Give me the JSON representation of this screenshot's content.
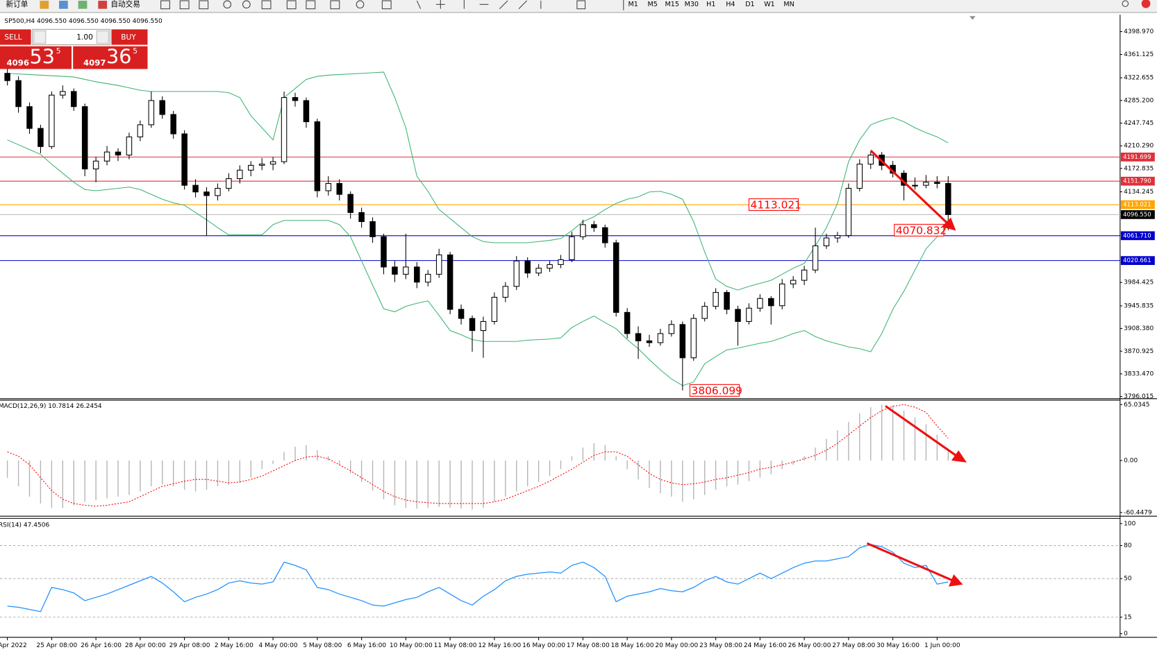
{
  "toolbar": {
    "new_order": "新订单",
    "auto_trading": "自动交易",
    "timeframes": [
      "M1",
      "M5",
      "M15",
      "M30",
      "H1",
      "H4",
      "D1",
      "W1",
      "MN"
    ]
  },
  "trade_panel": {
    "sell": "SELL",
    "lots": "1.00",
    "buy": "BUY",
    "bid": {
      "big": "4096",
      "main": "53",
      "small": "5"
    },
    "ask": {
      "big": "4097",
      "main": "36",
      "small": "5"
    }
  },
  "chart_data": [
    {
      "type": "candlestick",
      "title": "SP500,H4  4096.550 4096.550 4096.550 4096.550",
      "categories": [
        "Apr 2022",
        null,
        null,
        null,
        "25 Apr 08:00",
        null,
        null,
        null,
        "26 Apr 16:00",
        null,
        null,
        null,
        "28 Apr 00:00",
        null,
        null,
        null,
        "29 Apr 08:00",
        null,
        null,
        null,
        "2 May 16:00",
        null,
        null,
        null,
        "4 May 00:00",
        null,
        null,
        null,
        "5 May 08:00",
        null,
        null,
        null,
        "6 May 16:00",
        null,
        null,
        null,
        "10 May 00:00",
        null,
        null,
        null,
        "11 May 08:00",
        null,
        null,
        null,
        "12 May 16:00",
        null,
        null,
        null,
        "16 May 00:00",
        null,
        null,
        null,
        "17 May 08:00",
        null,
        null,
        null,
        "18 May 16:00",
        null,
        null,
        null,
        "20 May 00:00",
        null,
        null,
        null,
        "23 May 08:00",
        null,
        null,
        null,
        "24 May 16:00",
        null,
        null,
        null,
        "26 May 00:00",
        null,
        null,
        null,
        "27 May 08:00",
        null,
        null,
        null,
        "30 May 16:00",
        null,
        null,
        null,
        "1 Jun 00:00",
        null
      ],
      "open": [
        4330,
        4318,
        4275,
        4239,
        4209,
        4294,
        4300,
        4275,
        4172,
        4185,
        4200,
        4195,
        4225,
        4245,
        4285,
        4262,
        4230,
        4145,
        4134,
        4128,
        4140,
        4156,
        4170,
        4178,
        4180,
        4184,
        4290,
        4285,
        4250,
        4136,
        4148,
        4130,
        4100,
        4085,
        4060,
        4010,
        3998,
        4010,
        3985,
        3998,
        4030,
        3940,
        3925,
        3905,
        3920,
        3960,
        3978,
        4020,
        4000,
        4008,
        4014,
        4022,
        4060,
        4080,
        4075,
        4050,
        3935,
        3900,
        3888,
        3885,
        3900,
        3915,
        3860,
        3925,
        3945,
        3968,
        3940,
        3920,
        3942,
        3958,
        3946,
        3982,
        3988,
        4005,
        4045,
        4058,
        4062,
        4140,
        4180,
        4195,
        4178,
        4165,
        4145,
        4145,
        4150,
        4148
      ],
      "high": [
        4340,
        4325,
        4282,
        4245,
        4300,
        4310,
        4305,
        4280,
        4192,
        4210,
        4206,
        4232,
        4252,
        4300,
        4292,
        4268,
        4236,
        4155,
        4142,
        4148,
        4165,
        4178,
        4185,
        4190,
        4192,
        4300,
        4298,
        4290,
        4255,
        4160,
        4155,
        4135,
        4108,
        4092,
        4065,
        4020,
        4065,
        4018,
        4005,
        4040,
        4035,
        3948,
        3930,
        3928,
        3968,
        3985,
        4028,
        4026,
        4015,
        4020,
        4030,
        4068,
        4088,
        4086,
        4080,
        4055,
        3942,
        3912,
        3898,
        3908,
        3922,
        3920,
        3932,
        3952,
        3975,
        3972,
        3946,
        3950,
        3965,
        3962,
        3990,
        3995,
        4012,
        4075,
        4065,
        4068,
        4148,
        4188,
        4202,
        4200,
        4185,
        4170,
        4158,
        4162,
        4160,
        4160
      ],
      "low": [
        4310,
        4265,
        4230,
        4198,
        4205,
        4288,
        4268,
        4160,
        4150,
        4178,
        4185,
        4188,
        4218,
        4240,
        4255,
        4222,
        4138,
        4125,
        4062,
        4120,
        4135,
        4148,
        4160,
        4170,
        4170,
        4180,
        4275,
        4240,
        4125,
        4128,
        4120,
        4090,
        4075,
        4050,
        3998,
        3985,
        3990,
        3975,
        3978,
        3992,
        3932,
        3915,
        3870,
        3860,
        3915,
        3952,
        3972,
        3992,
        3995,
        4002,
        4008,
        4018,
        4055,
        4068,
        4042,
        3928,
        3892,
        3858,
        3878,
        3880,
        3895,
        3806.099,
        3855,
        3920,
        3940,
        3932,
        3880,
        3915,
        3936,
        3915,
        3940,
        3975,
        3980,
        4000,
        4040,
        4050,
        4058,
        4135,
        4172,
        4170,
        4158,
        4120,
        4138,
        4140,
        4140,
        4070.832
      ],
      "close": [
        4318,
        4275,
        4239,
        4209,
        4294,
        4300,
        4275,
        4172,
        4185,
        4200,
        4195,
        4225,
        4245,
        4285,
        4262,
        4230,
        4145,
        4134,
        4128,
        4140,
        4156,
        4170,
        4178,
        4180,
        4184,
        4290,
        4285,
        4250,
        4136,
        4148,
        4130,
        4100,
        4085,
        4060,
        4010,
        3998,
        4010,
        3985,
        3998,
        4030,
        3940,
        3925,
        3905,
        3920,
        3960,
        3978,
        4020,
        4000,
        4008,
        4014,
        4022,
        4060,
        4080,
        4075,
        4050,
        3935,
        3900,
        3888,
        3885,
        3900,
        3915,
        3860,
        3925,
        3945,
        3968,
        3940,
        3920,
        3942,
        3958,
        3946,
        3982,
        3988,
        4005,
        4045,
        4058,
        4062,
        4140,
        4180,
        4195,
        4178,
        4165,
        4145,
        4145,
        4150,
        4148,
        4096.55
      ],
      "up_color": "#ffffff",
      "down_color": "#000000",
      "bands": [
        {
          "color": "#3cb371",
          "values": [
            4330,
            4329,
            4328,
            4327,
            4326,
            4325,
            4324,
            4320,
            4316,
            4313,
            4310,
            4306,
            4302,
            4300,
            4300,
            4300,
            4300,
            4300,
            4300,
            4300,
            4298,
            4290,
            4260,
            4240,
            4220,
            4290,
            4305,
            4320,
            4325,
            4327,
            4328,
            4329,
            4330,
            4331,
            4332,
            4290,
            4240,
            4160,
            4135,
            4105,
            4090,
            4075,
            4060,
            4052,
            4050,
            4050,
            4050,
            4050,
            4052,
            4054,
            4057,
            4070,
            4085,
            4093,
            4105,
            4115,
            4122,
            4126,
            4134,
            4135,
            4130,
            4122,
            4085,
            4035,
            3990,
            3978,
            3972,
            3978,
            3983,
            3988,
            3998,
            4008,
            4016,
            4045,
            4075,
            4115,
            4184,
            4220,
            4245,
            4252,
            4257,
            4250,
            4240,
            4232,
            4225,
            4215
          ]
        },
        {
          "color": "#3cb371",
          "values": [
            4220,
            4212,
            4204,
            4196,
            4180,
            4165,
            4150,
            4138,
            4136,
            4138,
            4140,
            4142,
            4138,
            4130,
            4122,
            4116,
            4112,
            4100,
            4088,
            4075,
            4063,
            4063,
            4063,
            4063,
            4080,
            4087,
            4087,
            4087,
            4087,
            4087,
            4080,
            4060,
            4020,
            3980,
            3941,
            3936,
            3945,
            3950,
            3954,
            3930,
            3905,
            3898,
            3890,
            3887,
            3887,
            3887,
            3887,
            3889,
            3890,
            3891,
            3893,
            3910,
            3920,
            3929,
            3918,
            3908,
            3890,
            3875,
            3857,
            3840,
            3825,
            3814,
            3820,
            3850,
            3862,
            3873,
            3876,
            3880,
            3884,
            3887,
            3893,
            3900,
            3905,
            3895,
            3888,
            3883,
            3878,
            3875,
            3870,
            3900,
            3940,
            3970,
            4005,
            4040,
            4060,
            4080
          ]
        }
      ],
      "price_lines": [
        {
          "value": 4191.699,
          "label": "4191.699",
          "color": "#e0303a",
          "box": "#e0303a"
        },
        {
          "value": 4151.79,
          "label": "4151.790",
          "color": "#e0303a",
          "box": "#e0303a"
        },
        {
          "value": 4113.021,
          "label": "4113.021",
          "color": "#ffa500",
          "box": "#ffa500"
        },
        {
          "value": 4096.55,
          "label": "4096.550",
          "color": "#c0c0c0",
          "box": "#000000"
        },
        {
          "value": 4061.71,
          "label": "4061.710",
          "color": "#0000cd",
          "box": "#0000cd"
        },
        {
          "value": 4020.661,
          "label": "4020.661",
          "color": "#0000cd",
          "box": "#0000cd"
        }
      ],
      "annotations": [
        {
          "value": 4113.021,
          "label": "4113.021"
        },
        {
          "value": 4070.832,
          "label": "4070.832"
        },
        {
          "value": 3806.099,
          "label": "3806.099"
        }
      ],
      "annotation_color": "#ff0000",
      "ylim": [
        3792.4,
        4426.9
      ],
      "yticks": [
        {
          "value": 4398.97,
          "label": "4398.970"
        },
        4361.125,
        4322.655,
        {
          "value": 4285.2,
          "label": "4285.200"
        },
        4247.745,
        {
          "value": 4210.29,
          "label": "4210.290"
        },
        4172.835,
        4134.245,
        3984.425,
        3945.835,
        {
          "value": 3908.38,
          "label": "3908.380"
        },
        3870.925,
        {
          "value": 3833.47,
          "label": "3833.470"
        },
        3796.015
      ]
    },
    {
      "type": "macd",
      "title": "MACD(12,26,9) 10.7814 26.2454",
      "histogram_color": "#b4b4b4",
      "signal_color": "#ff0000",
      "histogram": [
        -20,
        -30,
        -42,
        -50,
        -55,
        -55,
        -52,
        -48,
        -46,
        -44,
        -42,
        -40,
        -36,
        -30,
        -28,
        -30,
        -34,
        -36,
        -34,
        -30,
        -28,
        -26,
        -20,
        -10,
        -4,
        10,
        16,
        18,
        12,
        5,
        -5,
        -15,
        -25,
        -35,
        -45,
        -52,
        -55,
        -56,
        -55,
        -54,
        -55,
        -56,
        -57,
        -55,
        -48,
        -42,
        -36,
        -30,
        -25,
        -18,
        -10,
        5,
        15,
        20,
        18,
        5,
        -10,
        -22,
        -32,
        -38,
        -42,
        -48,
        -45,
        -40,
        -34,
        -30,
        -28,
        -24,
        -20,
        -16,
        -10,
        -5,
        5,
        15,
        25,
        35,
        45,
        55,
        62,
        65,
        64,
        58,
        50,
        42,
        30,
        11
      ],
      "signal": [
        10,
        5,
        -5,
        -20,
        -35,
        -45,
        -50,
        -52,
        -53,
        -52,
        -50,
        -48,
        -42,
        -36,
        -30,
        -27,
        -24,
        -22,
        -22,
        -24,
        -26,
        -25,
        -22,
        -18,
        -12,
        -6,
        0,
        4,
        5,
        2,
        -5,
        -12,
        -20,
        -28,
        -36,
        -42,
        -46,
        -48,
        -49,
        -50,
        -50,
        -50,
        -50,
        -50,
        -48,
        -45,
        -40,
        -35,
        -30,
        -24,
        -17,
        -10,
        -2,
        6,
        10,
        10,
        5,
        -5,
        -15,
        -22,
        -26,
        -28,
        -27,
        -25,
        -22,
        -20,
        -17,
        -14,
        -10,
        -8,
        -5,
        -2,
        2,
        6,
        12,
        20,
        30,
        40,
        50,
        58,
        63,
        65,
        62,
        56,
        40,
        26
      ],
      "ylim": [
        -64.7,
        70.16
      ],
      "yticks": [
        65.0345,
        {
          "value": 0,
          "label": "0.00"
        },
        -60.4479
      ]
    },
    {
      "type": "rsi",
      "title": "RSI(14) 47.4506",
      "color": "#1e90ff",
      "values": [
        25,
        24,
        22,
        20,
        42,
        40,
        37,
        30,
        33,
        36,
        40,
        44,
        48,
        52,
        46,
        38,
        29,
        33,
        36,
        40,
        46,
        48,
        46,
        45,
        47,
        65,
        62,
        58,
        42,
        40,
        36,
        33,
        30,
        26,
        25,
        28,
        31,
        33,
        38,
        42,
        36,
        30,
        26,
        34,
        40,
        48,
        52,
        54,
        55,
        56,
        55,
        62,
        65,
        60,
        52,
        29,
        34,
        36,
        38,
        41,
        39,
        38,
        42,
        48,
        52,
        47,
        45,
        50,
        55,
        50,
        55,
        60,
        64,
        66,
        66,
        68,
        70,
        78,
        81,
        79,
        74,
        64,
        60,
        62,
        45,
        47
      ],
      "levels": [
        80,
        50,
        15
      ],
      "ylim": [
        -3.3,
        104.7
      ],
      "yticks": [
        100,
        80,
        50,
        15,
        0
      ]
    }
  ]
}
